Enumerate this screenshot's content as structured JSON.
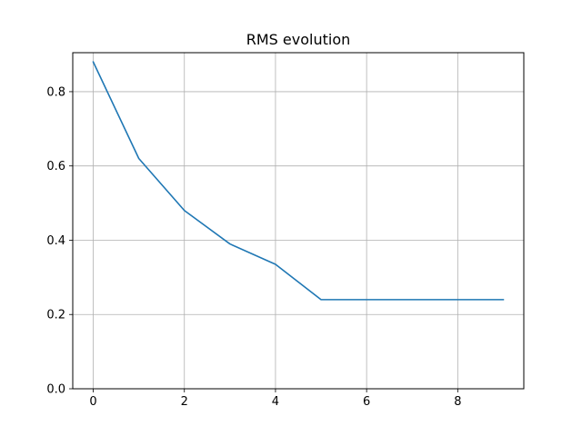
{
  "chart_data": {
    "type": "line",
    "title": "RMS evolution",
    "xlabel": "",
    "ylabel": "",
    "x": [
      0,
      1,
      2,
      3,
      4,
      5,
      6,
      7,
      8,
      9
    ],
    "series": [
      {
        "values": [
          0.88,
          0.62,
          0.48,
          0.39,
          0.335,
          0.24,
          0.24,
          0.24,
          0.24,
          0.24
        ],
        "color": "#1f77b4"
      }
    ],
    "xlim": [
      -0.45,
      9.45
    ],
    "ylim": [
      0.0,
      0.905
    ],
    "xticks": [
      0,
      2,
      4,
      6,
      8
    ],
    "xtick_labels": [
      "0",
      "2",
      "4",
      "6",
      "8"
    ],
    "yticks": [
      0.0,
      0.2,
      0.4,
      0.6,
      0.8
    ],
    "ytick_labels": [
      "0.0",
      "0.2",
      "0.4",
      "0.6",
      "0.8"
    ],
    "grid": true,
    "grid_color": "#b0b0b0",
    "axis_color": "#000000"
  }
}
